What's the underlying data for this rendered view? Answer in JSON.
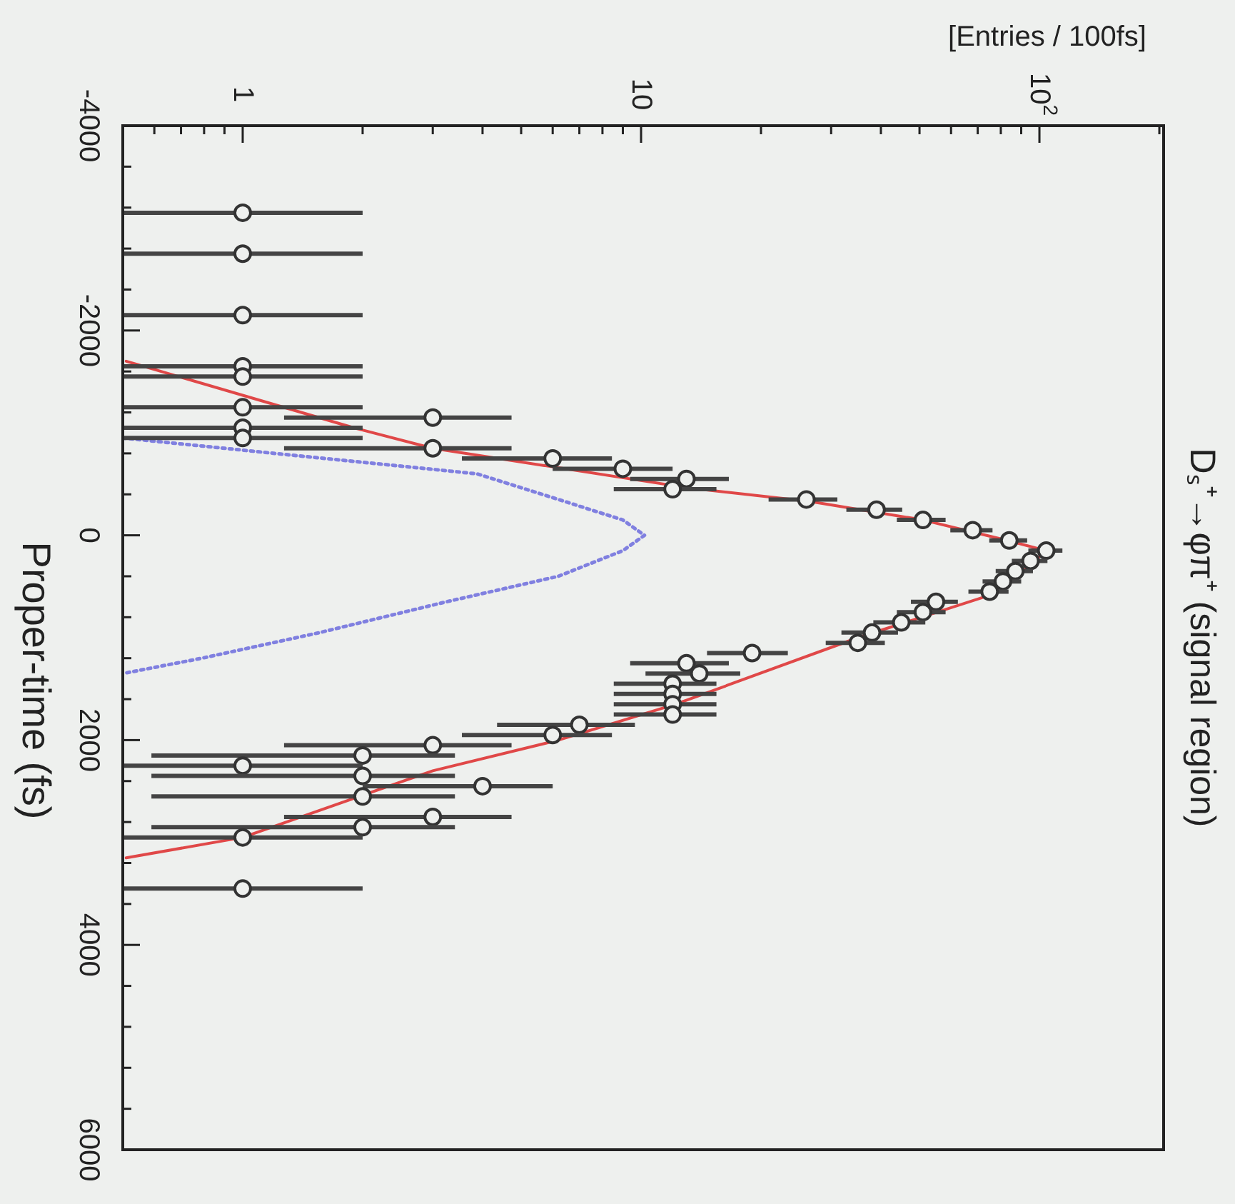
{
  "chart_data": {
    "type": "scatter",
    "title": "Dₛ⁺→φπ⁺ (signal region)",
    "xlabel": "[Entries / 100fs]",
    "ylabel": "Proper-time (fs)",
    "log": "x",
    "grid": false,
    "xlim": [
      0.5,
      205
    ],
    "xticks": [
      {
        "value": 0.6,
        "label": null
      },
      {
        "value": 0.7,
        "label": null
      },
      {
        "value": 0.8,
        "label": null
      },
      {
        "value": 0.9,
        "label": null
      },
      1,
      {
        "value": 2,
        "label": null
      },
      {
        "value": 3,
        "label": null
      },
      {
        "value": 4,
        "label": null
      },
      {
        "value": 5,
        "label": null
      },
      {
        "value": 6,
        "label": null
      },
      {
        "value": 7,
        "label": null
      },
      {
        "value": 8,
        "label": null
      },
      {
        "value": 9,
        "label": null
      },
      10,
      {
        "value": 20,
        "label": null
      },
      {
        "value": 30,
        "label": null
      },
      {
        "value": 40,
        "label": null
      },
      {
        "value": 50,
        "label": null
      },
      {
        "value": 60,
        "label": null
      },
      {
        "value": 70,
        "label": null
      },
      {
        "value": 80,
        "label": null
      },
      {
        "value": 90,
        "label": null
      },
      {
        "value": 100,
        "label": "10$^{2}$"
      },
      {
        "value": 200,
        "label": null
      }
    ],
    "ylim": [
      6000,
      -4000
    ],
    "yticks": [
      -4000,
      {
        "value": -3600,
        "label": null
      },
      {
        "value": -3200,
        "label": null
      },
      {
        "value": -2800,
        "label": null
      },
      {
        "value": -2400,
        "label": null
      },
      -2000,
      {
        "value": -1600,
        "label": null
      },
      {
        "value": -1200,
        "label": null
      },
      {
        "value": -800,
        "label": null
      },
      {
        "value": -400,
        "label": null
      },
      0,
      {
        "value": 400,
        "label": null
      },
      {
        "value": 800,
        "label": null
      },
      {
        "value": 1200,
        "label": null
      },
      {
        "value": 1600,
        "label": null
      },
      2000,
      {
        "value": 2400,
        "label": null
      },
      {
        "value": 2800,
        "label": null
      },
      {
        "value": 3200,
        "label": null
      },
      {
        "value": 3600,
        "label": null
      },
      4000,
      {
        "value": 4400,
        "label": null
      },
      {
        "value": 4800,
        "label": null
      },
      {
        "value": 5200,
        "label": null
      },
      {
        "value": 5600,
        "label": null
      },
      6000
    ],
    "series": [
      {
        "type": "line",
        "color": "#e04848",
        "marker": "none",
        "line_style": "solid",
        "x": [
          0.51,
          1.9,
          3,
          13.3,
          26.6,
          51,
          83,
          104,
          91,
          73,
          35,
          12.2,
          6.2,
          3,
          1.96,
          1,
          0.51
        ],
        "values": [
          -1700,
          -1050,
          -850,
          -460,
          -330,
          -150,
          50,
          150,
          350,
          600,
          1000,
          1650,
          2000,
          2300,
          2550,
          2950,
          3150
        ]
      },
      {
        "type": "line",
        "color": "#8080e0",
        "marker": "none",
        "line_style": "dotted",
        "x": [
          0.5,
          3.88,
          6.2,
          9,
          10.2,
          9,
          6.2,
          3.24,
          1.56,
          0.79,
          0.5
        ],
        "values": [
          -950,
          -600,
          -350,
          -150,
          0,
          150,
          400,
          650,
          950,
          1200,
          1350
        ]
      },
      {
        "color": "#333333",
        "marker": "circle",
        "x": [
          1,
          1,
          1,
          1,
          1,
          1,
          3,
          1,
          1,
          3,
          6,
          9,
          13,
          12,
          26,
          39,
          51,
          68,
          84,
          104,
          95,
          87,
          81,
          75,
          55,
          51,
          45,
          38,
          35,
          19,
          13,
          14,
          12,
          12,
          12,
          12,
          7,
          6,
          3,
          2,
          1,
          2,
          4,
          2,
          3,
          2,
          1,
          1
        ],
        "values": [
          -3150,
          -2750,
          -2150,
          -1650,
          -1550,
          -1250,
          -1150,
          -1050,
          -950,
          -850,
          -750,
          -650,
          -550,
          -450,
          -350,
          -250,
          -150,
          -50,
          50,
          150,
          250,
          350,
          450,
          550,
          650,
          750,
          850,
          950,
          1050,
          1150,
          1250,
          1350,
          1450,
          1550,
          1650,
          1750,
          1850,
          1950,
          2050,
          2150,
          2250,
          2350,
          2450,
          2550,
          2750,
          2850,
          2950,
          3450
        ],
        "xerrors": [
          [
            0.5,
            2
          ],
          [
            0.5,
            2
          ],
          [
            0.5,
            2
          ],
          [
            0.5,
            2
          ],
          [
            0.5,
            2
          ],
          [
            0.5,
            2
          ],
          1.73,
          [
            0.5,
            2
          ],
          [
            0.5,
            2
          ],
          1.73,
          2.45,
          3,
          3.61,
          3.46,
          5.1,
          6.24,
          7.14,
          8.25,
          9.17,
          10.2,
          9.75,
          9.33,
          9,
          8.66,
          7.42,
          7.14,
          6.71,
          6.16,
          5.92,
          4.36,
          3.61,
          3.74,
          3.46,
          3.46,
          3.46,
          3.46,
          2.65,
          2.45,
          1.73,
          1.41,
          [
            0.5,
            2
          ],
          1.41,
          2,
          1.41,
          1.73,
          1.41,
          [
            0.5,
            2
          ],
          [
            0.5,
            2
          ]
        ]
      }
    ]
  }
}
